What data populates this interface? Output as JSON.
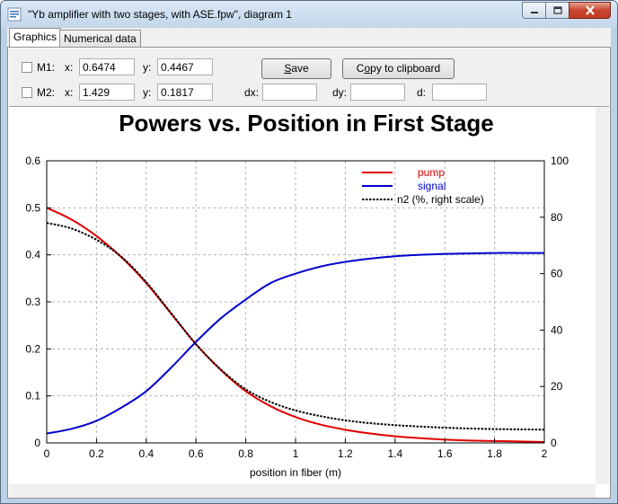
{
  "window": {
    "title": "\"Yb amplifier with two stages, with ASE.fpw\", diagram 1"
  },
  "tabs": [
    {
      "label": "Graphics"
    },
    {
      "label": "Numerical data"
    }
  ],
  "markers": {
    "m1": {
      "label": "M1:",
      "x_label": "x:",
      "x": "0.6474",
      "y_label": "y:",
      "y": "0.4467"
    },
    "m2": {
      "label": "M2:",
      "x_label": "x:",
      "x": "1.429",
      "y_label": "y:",
      "y": "0.1817"
    },
    "dx_label": "dx:",
    "dx": "",
    "dy_label": "dy:",
    "dy": "",
    "d_label": "d:",
    "d": ""
  },
  "buttons": {
    "save_first": "S",
    "save_rest": "ave",
    "copy_pre": "C",
    "copy_under": "o",
    "copy_rest": "py to clipboard"
  },
  "chart_data": {
    "type": "line",
    "title": "Powers vs. Position in First Stage",
    "xlabel": "position in fiber (m)",
    "ylabel": "",
    "y2label": "",
    "xlim": [
      0,
      2
    ],
    "ylim": [
      0,
      0.6
    ],
    "y2lim": [
      0,
      100
    ],
    "xticks": [
      "0",
      "0.2",
      "0.4",
      "0.6",
      "0.8",
      "1",
      "1.2",
      "1.4",
      "1.6",
      "1.8",
      "2"
    ],
    "yticks": [
      "0",
      "0.1",
      "0.2",
      "0.3",
      "0.4",
      "0.5",
      "0.6"
    ],
    "y2ticks": [
      "0",
      "20",
      "40",
      "60",
      "80",
      "100"
    ],
    "grid": true,
    "legend_position": "top-right",
    "series": [
      {
        "name": "pump",
        "color": "#e00000",
        "style": "solid",
        "axis": "left",
        "x": [
          0,
          0.1,
          0.2,
          0.3,
          0.4,
          0.5,
          0.6,
          0.7,
          0.8,
          0.9,
          1.0,
          1.1,
          1.2,
          1.3,
          1.4,
          1.5,
          1.6,
          1.7,
          1.8,
          1.9,
          2.0
        ],
        "y": [
          0.5,
          0.475,
          0.44,
          0.395,
          0.34,
          0.275,
          0.21,
          0.155,
          0.11,
          0.078,
          0.055,
          0.039,
          0.028,
          0.02,
          0.014,
          0.01,
          0.007,
          0.005,
          0.004,
          0.003,
          0.002
        ]
      },
      {
        "name": "signal",
        "color": "#0000cc",
        "style": "solid",
        "axis": "left",
        "x": [
          0,
          0.1,
          0.2,
          0.3,
          0.4,
          0.5,
          0.6,
          0.7,
          0.8,
          0.9,
          1.0,
          1.1,
          1.2,
          1.3,
          1.4,
          1.5,
          1.6,
          1.7,
          1.8,
          1.9,
          2.0
        ],
        "y": [
          0.02,
          0.03,
          0.047,
          0.075,
          0.11,
          0.16,
          0.215,
          0.265,
          0.305,
          0.34,
          0.36,
          0.375,
          0.385,
          0.392,
          0.397,
          0.4,
          0.402,
          0.403,
          0.404,
          0.404,
          0.404
        ]
      },
      {
        "name": "n2 (%, right scale)",
        "color": "#000000",
        "style": "dotted",
        "axis": "right",
        "x": [
          0,
          0.1,
          0.2,
          0.3,
          0.4,
          0.5,
          0.6,
          0.7,
          0.8,
          0.9,
          1.0,
          1.1,
          1.2,
          1.3,
          1.4,
          1.5,
          1.6,
          1.7,
          1.8,
          1.9,
          2.0
        ],
        "y": [
          78,
          76,
          72,
          66,
          57,
          46,
          35,
          26,
          19,
          14.5,
          11.5,
          9.5,
          8,
          7,
          6.3,
          5.8,
          5.4,
          5.1,
          4.9,
          4.8,
          4.7
        ]
      }
    ]
  }
}
